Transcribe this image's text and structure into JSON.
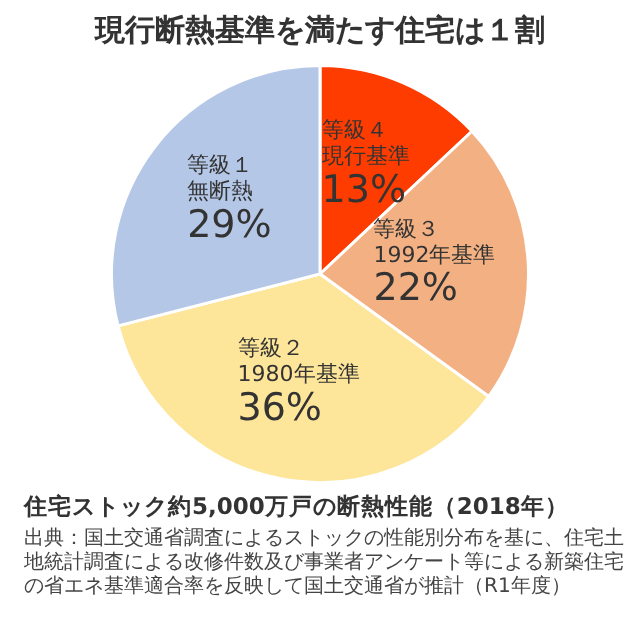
{
  "chart_data": {
    "type": "pie",
    "title": "現行断熱基準を満たす住宅は１割",
    "subtitle": "住宅ストック約5,000万戸の断熱性能（2018年）",
    "categories": [
      "等級４現行基準",
      "等級３1992年基準",
      "等級２1980年基準",
      "等級１無断熱"
    ],
    "values": [
      13,
      22,
      36,
      29
    ],
    "value_labels": [
      "13%",
      "22%",
      "36%",
      "29%"
    ],
    "colors": [
      "#ff3c00",
      "#f3b183",
      "#fde59a",
      "#b4c7e7"
    ],
    "legend": false,
    "annotations": [
      "出典：国土交通省調査によるストックの性能別分布を基に、住宅土地統計調査による改修件数及び事業者アンケート等による新築住宅の省エネ基準適合率を反映して国土交通省が推計（R1年度）"
    ]
  }
}
